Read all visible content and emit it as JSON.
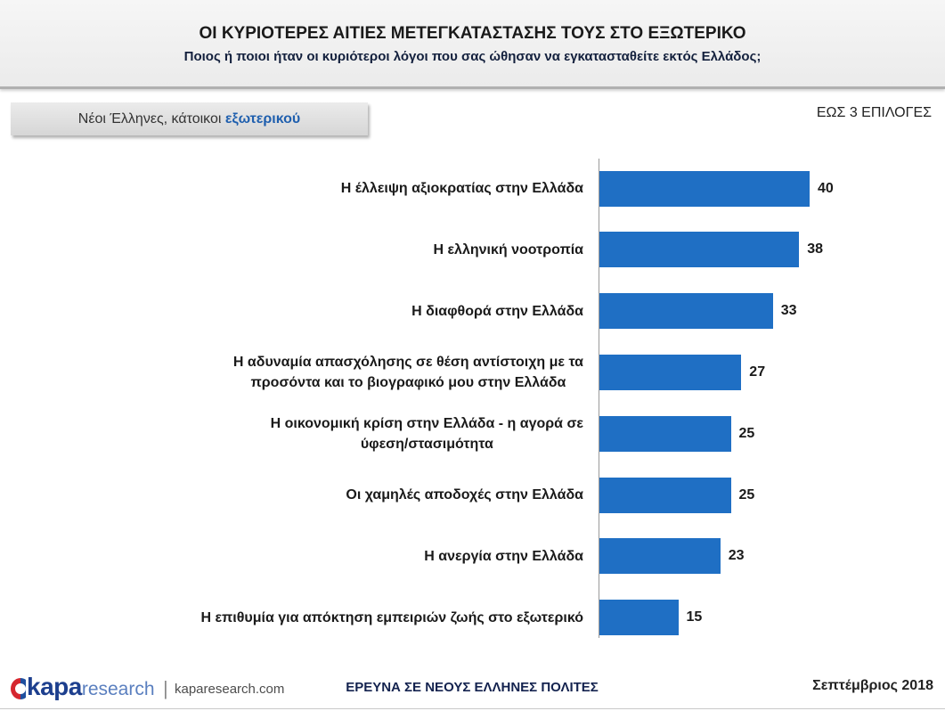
{
  "header": {
    "title": "ΟΙ ΚΥΡΙΟΤΕΡΕΣ ΑΙΤΙΕΣ ΜΕΤΕΓΚΑΤΑΣΤΑΣΗΣ ΤΟΥΣ ΣΤΟ ΕΞΩΤΕΡΙΚΟ",
    "subtitle": "Ποιος ή ποιοι ήταν οι κυριότεροι λόγοι που σας ώθησαν να εγκατασταθείτε εκτός Ελλάδος;"
  },
  "segment": {
    "prefix": "Νέοι Έλληνες, κάτοικοι ",
    "highlight": "εξωτερικού"
  },
  "note": "ΕΩΣ 3 ΕΠΙΛΟΓΕΣ",
  "chart_data": {
    "type": "bar",
    "orientation": "horizontal",
    "categories": [
      "Η έλλειψη αξιοκρατίας στην Ελλάδα",
      "Η ελληνική νοοτροπία",
      "Η διαφθορά στην Ελλάδα",
      "Η αδυναμία απασχόλησης σε θέση αντίστοιχη με τα\nπροσόντα και το βιογραφικό μου στην Ελλάδα",
      "Η οικονομική κρίση στην Ελλάδα - η αγορά σε\nύφεση/στασιμότητα",
      "Οι χαμηλές αποδοχές στην Ελλάδα",
      "Η ανεργία στην Ελλάδα",
      "Η επιθυμία για απόκτηση εμπειριών ζωής στο εξωτερικό"
    ],
    "values": [
      40,
      38,
      33,
      27,
      25,
      25,
      23,
      15
    ],
    "data_labels": true,
    "grid": false,
    "legend": false
  },
  "footer": {
    "logo_brand": "kapa",
    "logo_suffix": "research",
    "separator": "|",
    "website": "kaparesearch.com",
    "survey": "ΕΡΕΥΝΑ ΣΕ ΝΕΟΥΣ ΕΛΛΗΝΕΣ ΠΟΛΙΤΕΣ",
    "date": "Σεπτέμβριος 2018"
  },
  "icons": {
    "logo": "kapa-research-logo-mark"
  },
  "colors": {
    "bar": "#1f6fc4",
    "highlight_text": "#1f5fae",
    "survey_text": "#14234f",
    "logo_red": "#d5262f",
    "logo_blue": "#1e4f9f"
  }
}
